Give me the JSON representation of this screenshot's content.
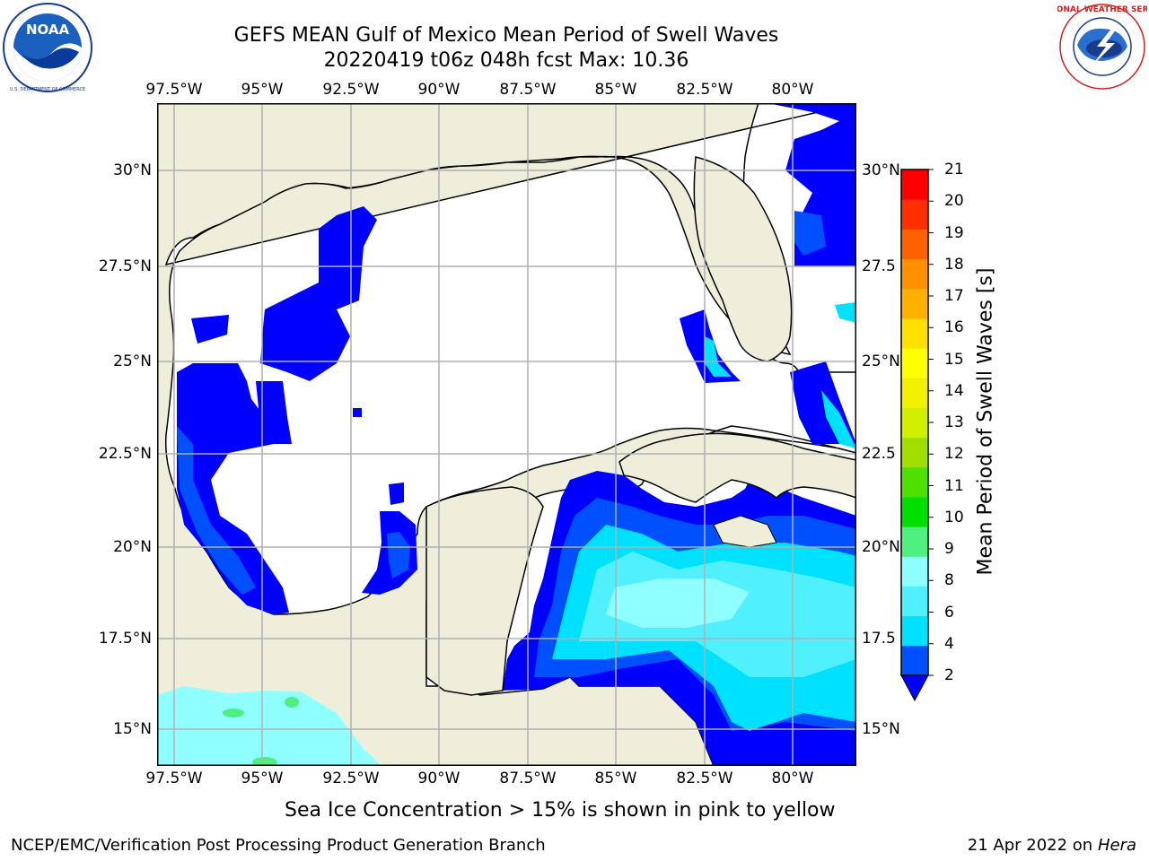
{
  "title": {
    "line1": "GEFS MEAN Gulf of Mexico Mean Period of Swell Waves",
    "line2": "20220419 t06z 048h fcst   Max: 10.36"
  },
  "logos": {
    "left": {
      "icon": "noaa-logo",
      "text": "NOAA"
    },
    "right": {
      "icon": "national-weather-service-logo",
      "text": "NATIONAL WEATHER SERVICE"
    }
  },
  "map": {
    "lon_ticks": [
      "97.5°W",
      "95°W",
      "92.5°W",
      "90°W",
      "87.5°W",
      "85°W",
      "82.5°W",
      "80°W"
    ],
    "lat_ticks": [
      "30°N",
      "27.5°N",
      "25°N",
      "22.5°N",
      "20°N",
      "17.5°N",
      "15°N"
    ],
    "lat_ticks_right": [
      "30°N",
      "27.5",
      "25°N",
      "22.5",
      "20°N",
      "17.5",
      "15°N"
    ],
    "land_color": "#efeedb",
    "ocean_color": "#ffffff",
    "grid_color": "#b0b0b0"
  },
  "colorbar": {
    "label": "Mean Period of Swell Waves [s]",
    "ticks": [
      "21",
      "20",
      "19",
      "18",
      "17",
      "16",
      "15",
      "14",
      "13",
      "12",
      "11",
      "10",
      "9",
      "8",
      "6",
      "4",
      "2"
    ],
    "colors": [
      "#0050ff",
      "#00e0ff",
      "#50f0ff",
      "#90ffff",
      "#50f080",
      "#00e000",
      "#50e000",
      "#a0e000",
      "#d0f000",
      "#f0f000",
      "#ffff00",
      "#ffe000",
      "#ffb000",
      "#ff9000",
      "#ff6000",
      "#ff3000",
      "#ff0000"
    ],
    "under_color": "#0000ff"
  },
  "caption": "Sea Ice Concentration > 15% is shown in pink to yellow",
  "footer": {
    "left": "NCEP/EMC/Verification Post Processing Product Generation Branch",
    "right_date": "21 Apr 2022 on ",
    "right_host": "Hera"
  }
}
